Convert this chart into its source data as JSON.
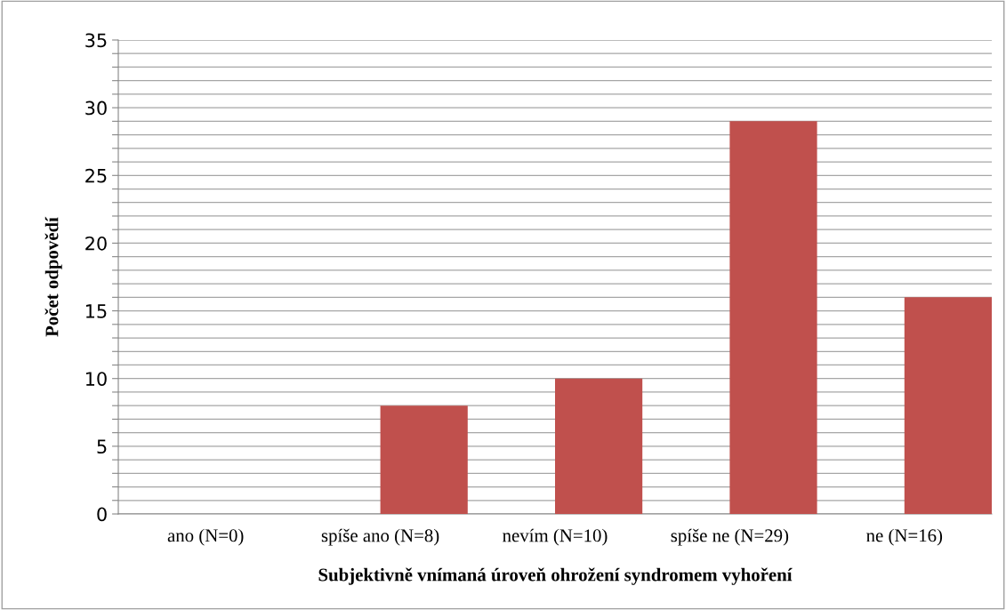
{
  "chart_data": {
    "type": "bar",
    "xlabel": "Subjektivně vnímaná úroveň ohrožení syndromem vyhoření",
    "ylabel": "Počet odpovědí",
    "categories": [
      "ano (N=0)",
      "spíše ano (N=8)",
      "nevím (N=10)",
      "spíše ne (N=29)",
      "ne (N=16)"
    ],
    "values": [
      0,
      8,
      10,
      29,
      16
    ],
    "color": "#c0504d",
    "ylim": [
      0,
      35
    ],
    "yticks": [
      0,
      {
        "value": 1,
        "label": null
      },
      {
        "value": 2,
        "label": null
      },
      {
        "value": 3,
        "label": null
      },
      {
        "value": 4,
        "label": null
      },
      5,
      {
        "value": 6,
        "label": null
      },
      {
        "value": 7,
        "label": null
      },
      {
        "value": 8,
        "label": null
      },
      {
        "value": 9,
        "label": null
      },
      10,
      {
        "value": 11,
        "label": null
      },
      {
        "value": 12,
        "label": null
      },
      {
        "value": 13,
        "label": null
      },
      {
        "value": 14,
        "label": null
      },
      15,
      {
        "value": 16,
        "label": null
      },
      {
        "value": 17,
        "label": null
      },
      {
        "value": 18,
        "label": null
      },
      {
        "value": 19,
        "label": null
      },
      20,
      {
        "value": 21,
        "label": null
      },
      {
        "value": 22,
        "label": null
      },
      {
        "value": 23,
        "label": null
      },
      {
        "value": 24,
        "label": null
      },
      25,
      {
        "value": 26,
        "label": null
      },
      {
        "value": 27,
        "label": null
      },
      {
        "value": 28,
        "label": null
      },
      {
        "value": 29,
        "label": null
      },
      30,
      {
        "value": 31,
        "label": null
      },
      {
        "value": 32,
        "label": null
      },
      {
        "value": 33,
        "label": null
      },
      {
        "value": 34,
        "label": null
      },
      35
    ],
    "grid": "y"
  }
}
